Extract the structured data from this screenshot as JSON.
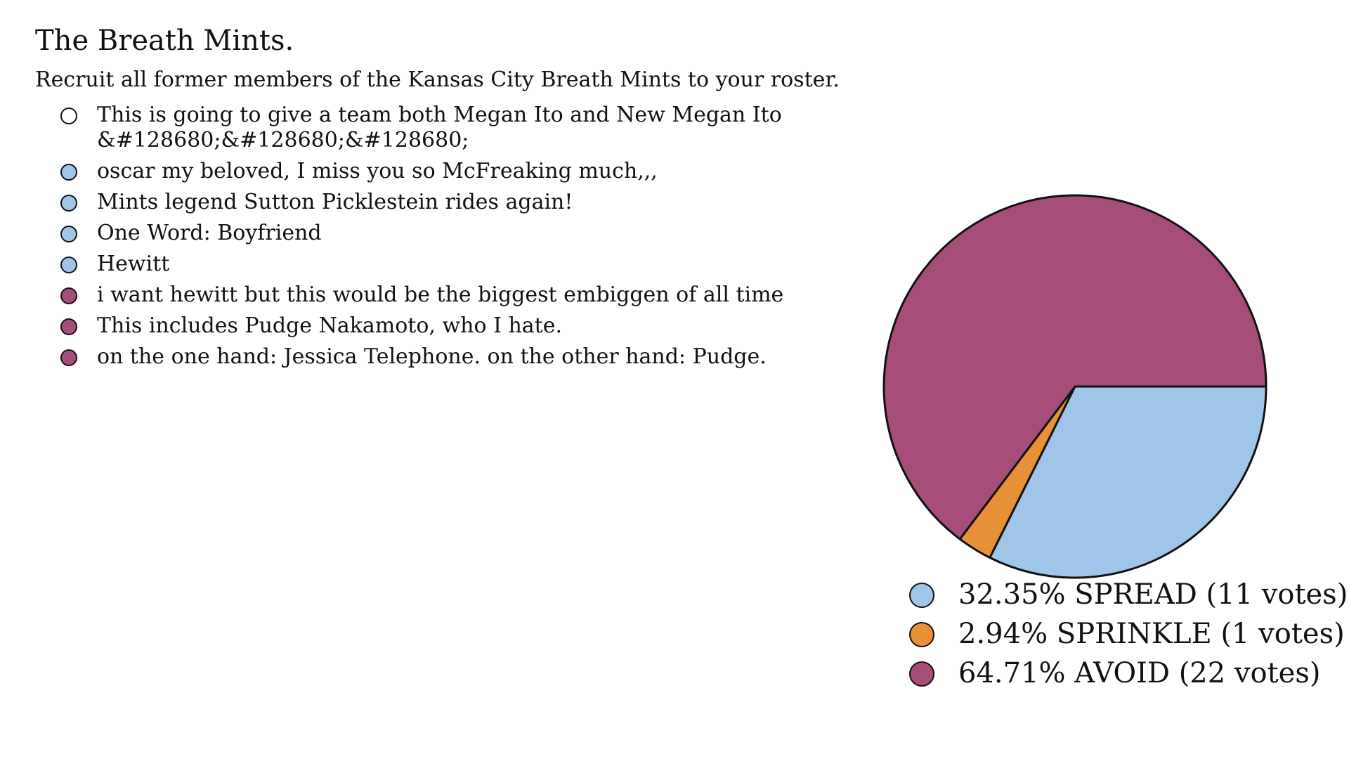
{
  "poll": {
    "title": "The Breath Mints.",
    "subtitle": "Recruit all former members of the Kansas City Breath Mints to your roster."
  },
  "colors": {
    "SPREAD": "#9fc5e8",
    "SPRINKLE": "#e69138",
    "AVOID": "#a64d79",
    "none": "#ffffff"
  },
  "comments": [
    {
      "text": "This is going to give a team both Megan Ito and New Megan Ito &#128680;&#128680;&#128680;",
      "vote": "none"
    },
    {
      "text": "oscar my beloved, I miss you so McFreaking much,,,",
      "vote": "SPREAD"
    },
    {
      "text": "Mints legend Sutton Picklestein rides again!",
      "vote": "SPREAD"
    },
    {
      "text": "One Word: Boyfriend",
      "vote": "SPREAD"
    },
    {
      "text": "Hewitt",
      "vote": "SPREAD"
    },
    {
      "text": "i want hewitt but this would be the biggest embiggen of all time",
      "vote": "AVOID"
    },
    {
      "text": "This includes Pudge Nakamoto, who I hate.",
      "vote": "AVOID"
    },
    {
      "text": "on the one hand: Jessica Telephone. on the other hand: Pudge.",
      "vote": "AVOID"
    }
  ],
  "chart_data": {
    "type": "pie",
    "title": "",
    "start_angle_deg": 0,
    "direction": "clockwise",
    "legend_position": "bottom",
    "slices": [
      {
        "name": "SPREAD",
        "percent": 32.35,
        "votes": 11,
        "label": "32.35% SPREAD (11 votes)",
        "color": "#9fc5e8"
      },
      {
        "name": "SPRINKLE",
        "percent": 2.94,
        "votes": 1,
        "label": "2.94% SPRINKLE (1 votes)",
        "color": "#e69138"
      },
      {
        "name": "AVOID",
        "percent": 64.71,
        "votes": 22,
        "label": "64.71% AVOID (22 votes)",
        "color": "#a64d79"
      }
    ]
  }
}
